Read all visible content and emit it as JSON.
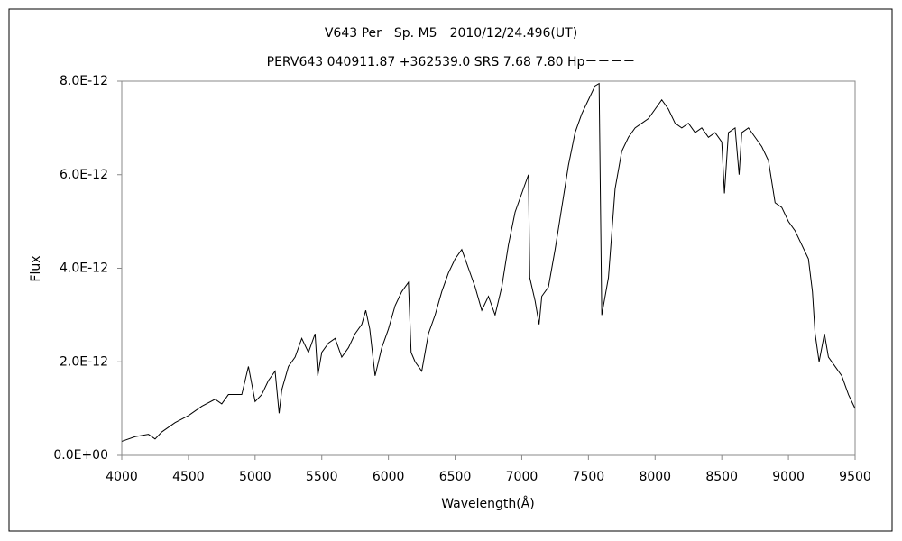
{
  "chart_data": {
    "type": "line",
    "title": "V643 Per　Sp. M5　2010/12/24.496(UT)",
    "subtitle": "PERV643 040911.87 +362539.0 SRS 7.68 7.80 Hp－－－－",
    "x_label": "Wavelength(Å)",
    "y_label": "Flux",
    "color": "#000000",
    "xlim": [
      4000,
      9500
    ],
    "xticks": [
      4000,
      4500,
      5000,
      5500,
      6000,
      6500,
      7000,
      7500,
      8000,
      8500,
      9000,
      9500
    ],
    "ylim": [
      0,
      8e-12
    ],
    "yticks": [
      {
        "value": 0,
        "label": "0.0E+00"
      },
      {
        "value": 2e-12,
        "label": "2.0E-12"
      },
      {
        "value": 4e-12,
        "label": "4.0E-12"
      },
      {
        "value": 6e-12,
        "label": "6.0E-12"
      },
      {
        "value": 8e-12,
        "label": "8.0E-12"
      }
    ],
    "grid": false,
    "x": [
      4000,
      4100,
      4200,
      4250,
      4300,
      4400,
      4500,
      4600,
      4700,
      4750,
      4800,
      4900,
      4950,
      5000,
      5050,
      5100,
      5150,
      5180,
      5200,
      5250,
      5300,
      5350,
      5400,
      5450,
      5470,
      5500,
      5550,
      5600,
      5650,
      5700,
      5750,
      5800,
      5830,
      5860,
      5900,
      5950,
      6000,
      6050,
      6100,
      6150,
      6170,
      6200,
      6250,
      6300,
      6350,
      6400,
      6450,
      6500,
      6550,
      6600,
      6650,
      6700,
      6750,
      6800,
      6850,
      6900,
      6950,
      7000,
      7050,
      7060,
      7100,
      7130,
      7150,
      7200,
      7250,
      7300,
      7350,
      7400,
      7450,
      7500,
      7550,
      7580,
      7600,
      7650,
      7700,
      7750,
      7800,
      7850,
      7900,
      7950,
      8000,
      8050,
      8100,
      8150,
      8200,
      8250,
      8300,
      8350,
      8400,
      8450,
      8500,
      8520,
      8550,
      8600,
      8630,
      8650,
      8700,
      8750,
      8800,
      8850,
      8900,
      8950,
      9000,
      9050,
      9100,
      9150,
      9180,
      9200,
      9230,
      9270,
      9300,
      9350,
      9400,
      9450,
      9500
    ],
    "values": [
      3e-13,
      4e-13,
      4.5e-13,
      3.5e-13,
      5e-13,
      7e-13,
      8.5e-13,
      1.05e-12,
      1.2e-12,
      1.1e-12,
      1.3e-12,
      1.3e-12,
      1.9e-12,
      1.15e-12,
      1.3e-12,
      1.6e-12,
      1.8e-12,
      9e-13,
      1.4e-12,
      1.9e-12,
      2.1e-12,
      2.5e-12,
      2.2e-12,
      2.6e-12,
      1.7e-12,
      2.2e-12,
      2.4e-12,
      2.5e-12,
      2.1e-12,
      2.3e-12,
      2.6e-12,
      2.8e-12,
      3.1e-12,
      2.7e-12,
      1.7e-12,
      2.3e-12,
      2.7e-12,
      3.2e-12,
      3.5e-12,
      3.7e-12,
      2.2e-12,
      2e-12,
      1.8e-12,
      2.6e-12,
      3e-12,
      3.5e-12,
      3.9e-12,
      4.2e-12,
      4.4e-12,
      4e-12,
      3.6e-12,
      3.1e-12,
      3.4e-12,
      3e-12,
      3.6e-12,
      4.5e-12,
      5.2e-12,
      5.6e-12,
      6e-12,
      3.8e-12,
      3.3e-12,
      2.8e-12,
      3.4e-12,
      3.6e-12,
      4.4e-12,
      5.3e-12,
      6.2e-12,
      6.9e-12,
      7.3e-12,
      7.6e-12,
      7.9e-12,
      7.95e-12,
      3e-12,
      3.8e-12,
      5.7e-12,
      6.5e-12,
      6.8e-12,
      7e-12,
      7.1e-12,
      7.2e-12,
      7.4e-12,
      7.6e-12,
      7.4e-12,
      7.1e-12,
      7e-12,
      7.1e-12,
      6.9e-12,
      7e-12,
      6.8e-12,
      6.9e-12,
      6.7e-12,
      5.6e-12,
      6.9e-12,
      7e-12,
      6e-12,
      6.9e-12,
      7e-12,
      6.8e-12,
      6.6e-12,
      6.3e-12,
      5.4e-12,
      5.3e-12,
      5e-12,
      4.8e-12,
      4.5e-12,
      4.2e-12,
      3.5e-12,
      2.6e-12,
      2e-12,
      2.6e-12,
      2.1e-12,
      1.9e-12,
      1.7e-12,
      1.3e-12,
      1e-12
    ]
  }
}
